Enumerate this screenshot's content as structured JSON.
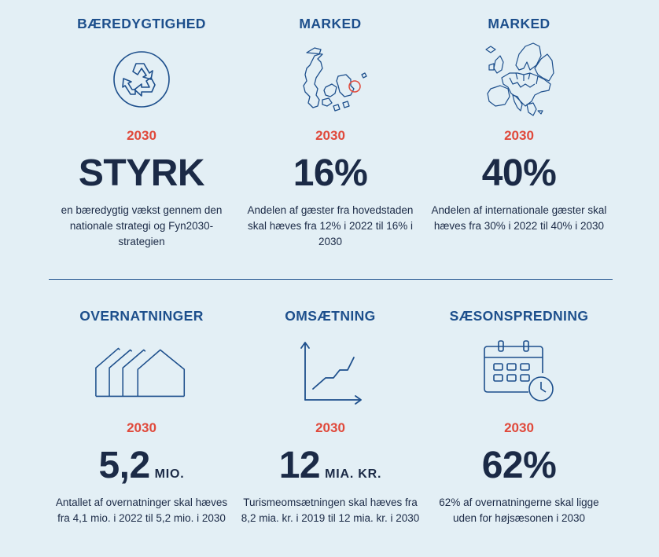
{
  "row1": [
    {
      "heading": "BÆREDYGTIGHED",
      "year": "2030",
      "value": "STYRK",
      "unit": "",
      "desc": "en bæredygtig vækst gennem den nationale strategi og Fyn2030-strategien"
    },
    {
      "heading": "MARKED",
      "year": "2030",
      "value": "16%",
      "unit": "",
      "desc": "Andelen af gæster fra hovedstaden skal hæves fra 12% i 2022 til 16% i 2030"
    },
    {
      "heading": "MARKED",
      "year": "2030",
      "value": "40%",
      "unit": "",
      "desc": "Andelen af internationale gæster skal hæves fra 30% i 2022 til 40% i 2030"
    }
  ],
  "row2": [
    {
      "heading": "OVERNATNINGER",
      "year": "2030",
      "value": "5,2",
      "unit": "MIO.",
      "desc": "Antallet af overnatninger skal hæves fra 4,1 mio. i 2022 til 5,2 mio. i 2030"
    },
    {
      "heading": "OMSÆTNING",
      "year": "2030",
      "value": "12",
      "unit": "MIA. KR.",
      "desc": "Turismeomsætningen skal hæves  fra 8,2 mia. kr. i 2019 til 12 mia. kr. i 2030"
    },
    {
      "heading": "SÆSONSPREDNING",
      "year": "2030",
      "value": "62%",
      "unit": "",
      "desc": "62% af overnatningerne skal ligge uden for højsæsonen i 2030"
    }
  ],
  "icons": [
    "recycle-icon",
    "denmark-map-icon",
    "europe-map-icon",
    "houses-icon",
    "growth-chart-icon",
    "calendar-clock-icon"
  ],
  "colors": {
    "background": "#e3eff5",
    "heading": "#1d4f8c",
    "year": "#e0493b",
    "value": "#1b2a46",
    "divider": "#1d4f8c"
  }
}
